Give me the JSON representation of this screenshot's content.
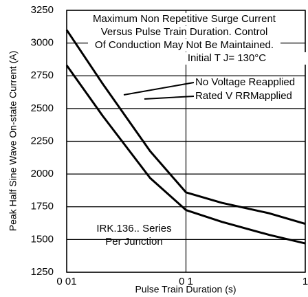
{
  "chart_data": {
    "type": "line",
    "xlabel": "Pulse Train Duration (s)",
    "ylabel": "Peak Half Sine Wave On-state Current (A)",
    "annotations": [
      "Maximum Non Repetitive Surge Current",
      "Versus Pulse Train Duration. Control",
      "Of Conduction May Not Be Maintained.",
      "Initial T J= 130°C",
      "IRK.136.. Series",
      "Per Junction"
    ],
    "x": [
      0.01,
      0.02,
      0.05,
      0.1,
      0.2,
      0.5,
      1
    ],
    "series": [
      {
        "name": "No Voltage Reapplied",
        "color": "#000000",
        "values": [
          3100,
          2690,
          2175,
          1860,
          1780,
          1700,
          1620
        ]
      },
      {
        "name": "Rated V RRMapplied",
        "color": "#000000",
        "values": [
          2830,
          2445,
          1970,
          1725,
          1635,
          1535,
          1470
        ]
      }
    ],
    "xlim": [
      0.01,
      1
    ],
    "xscale": "log",
    "xticks": [
      {
        "value": 0.01,
        "label": "0 01"
      },
      {
        "value": 0.1,
        "label": "0 1"
      },
      1
    ],
    "ylim": [
      1250,
      3250
    ],
    "yticks": [
      1250,
      1500,
      1750,
      2000,
      2250,
      2500,
      2750,
      3000,
      3250
    ],
    "grid": true
  }
}
